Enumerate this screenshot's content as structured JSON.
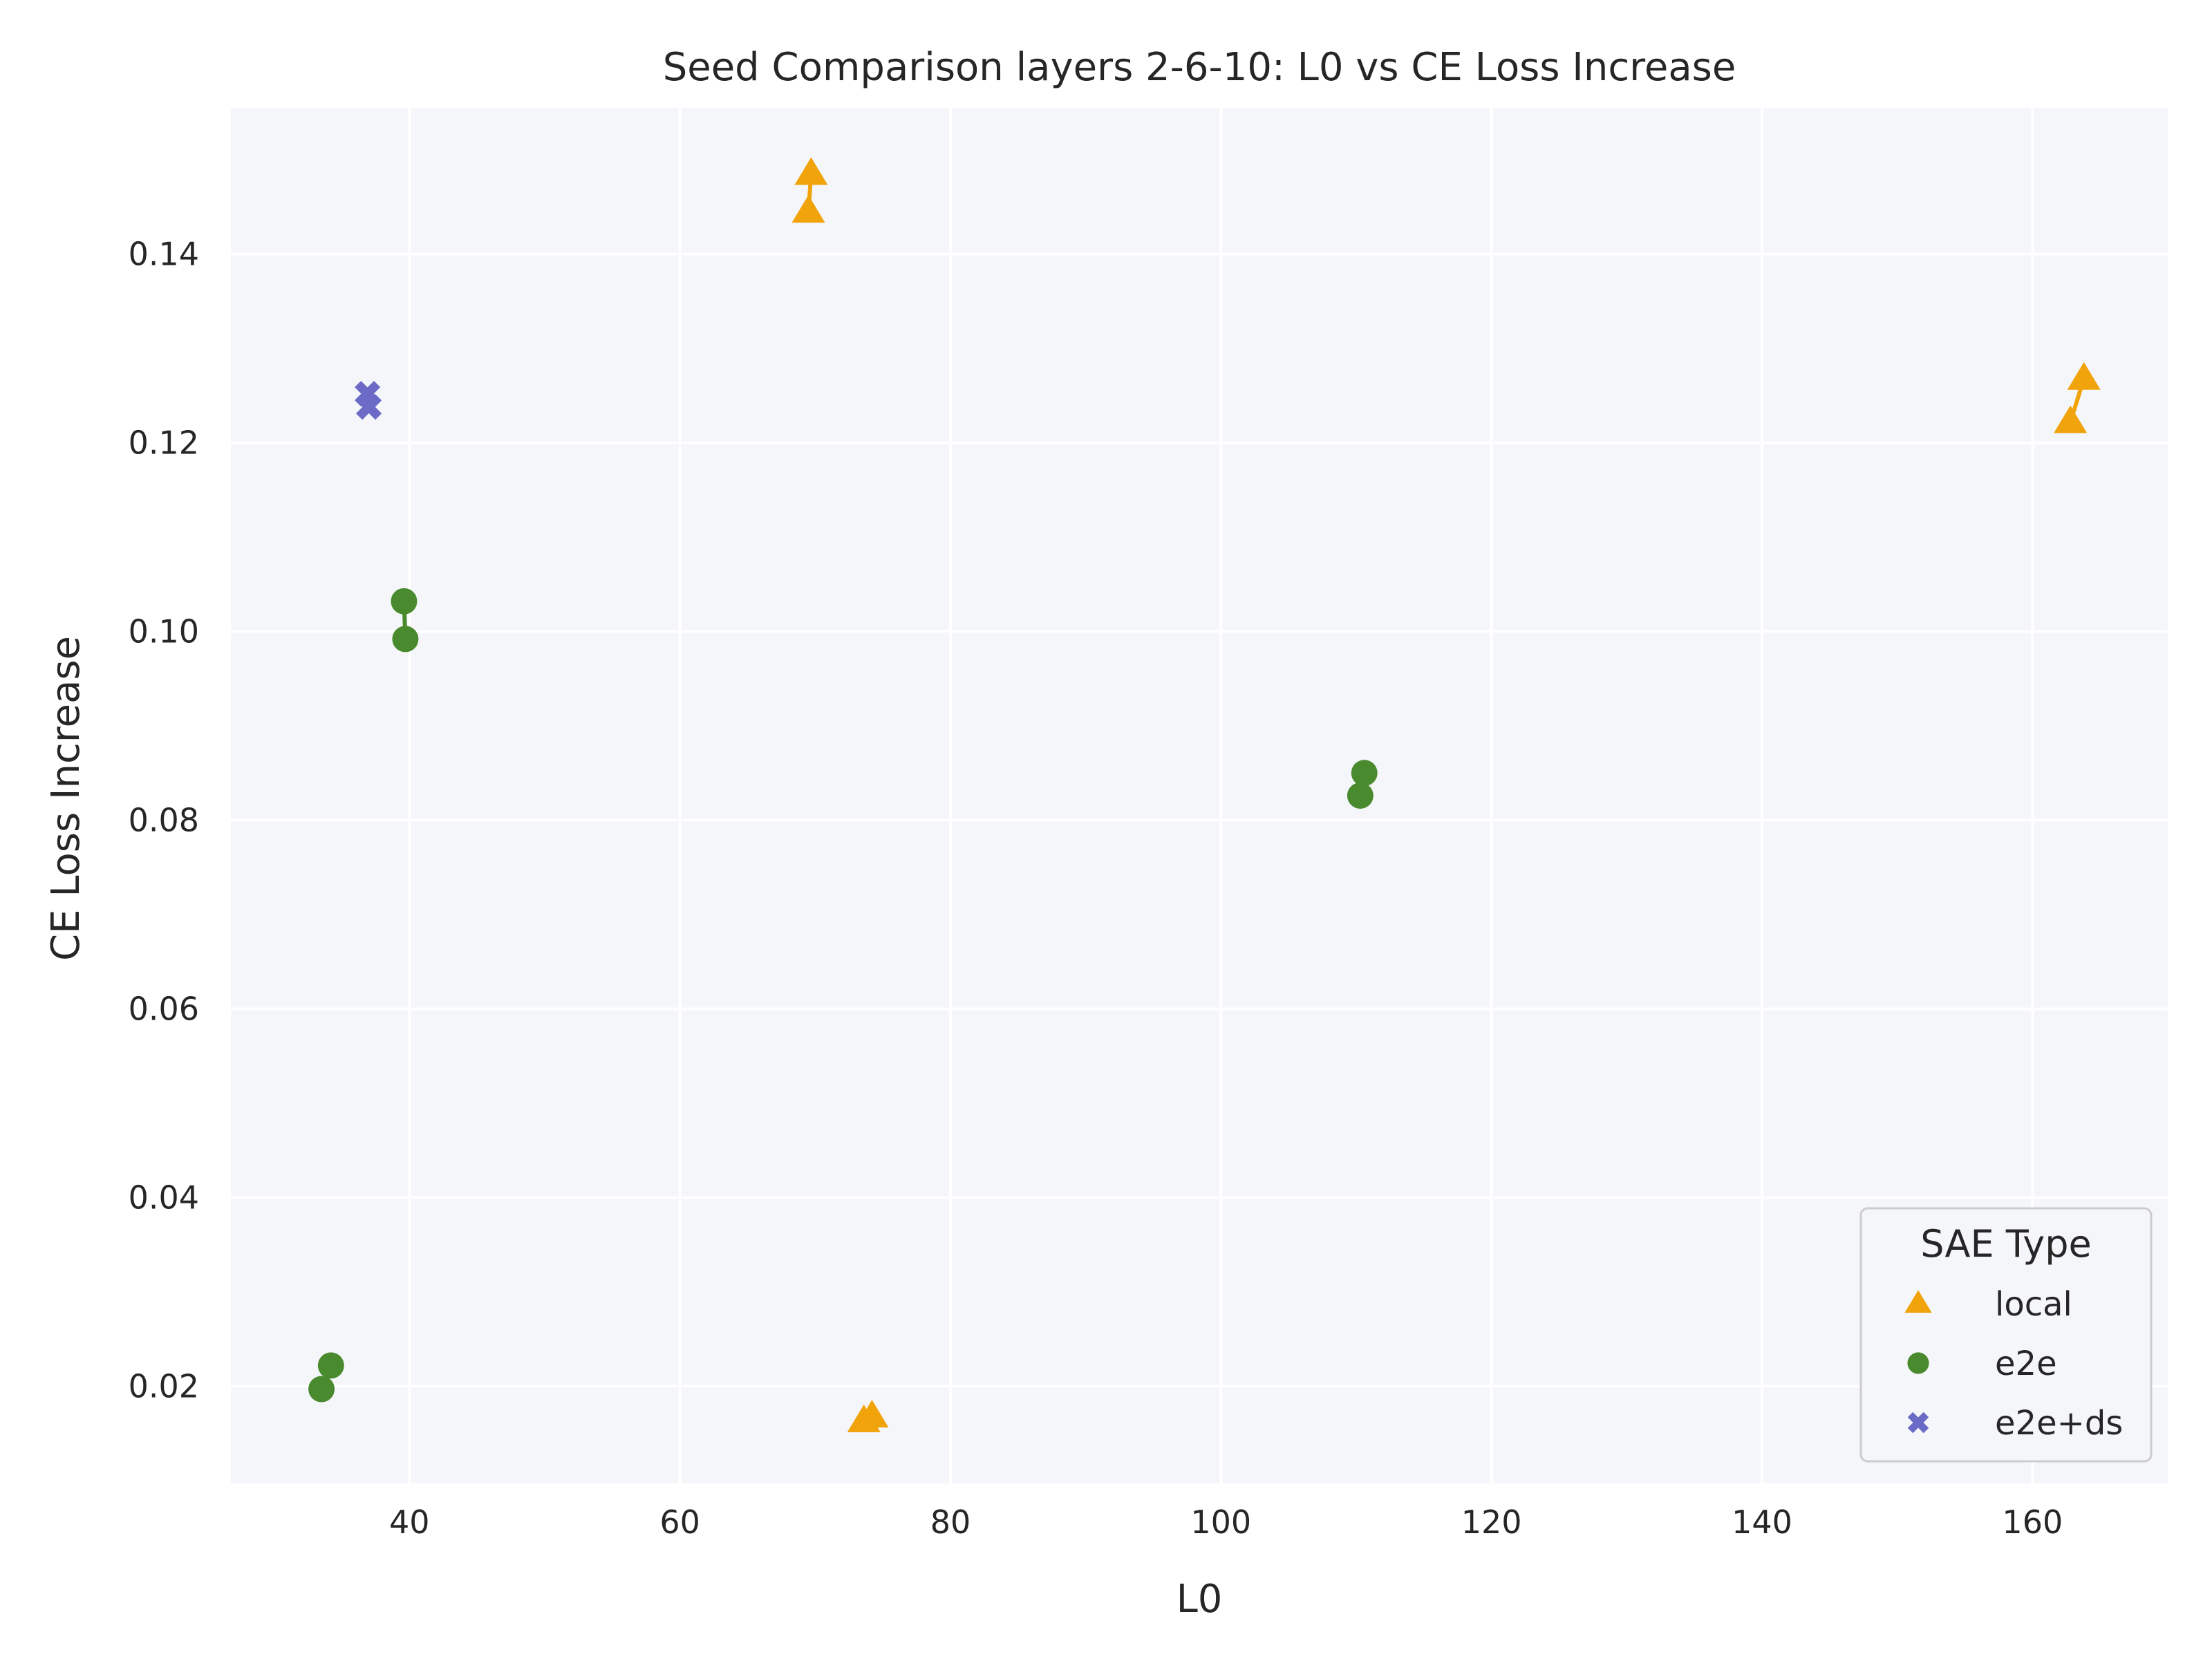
{
  "chart_data": {
    "type": "scatter",
    "title": "Seed Comparison layers 2-6-10: L0 vs CE Loss Increase",
    "xlabel": "L0",
    "ylabel": "CE Loss Increase",
    "xlim": [
      26.8,
      170.0
    ],
    "ylim": [
      0.0097,
      0.1555
    ],
    "xticks": [
      40,
      60,
      80,
      100,
      120,
      140,
      160
    ],
    "yticks": [
      0.02,
      0.04,
      0.06,
      0.08,
      0.1,
      0.12,
      0.14
    ],
    "ytick_labels": [
      "0.02",
      "0.04",
      "0.06",
      "0.08",
      "0.10",
      "0.12",
      "0.14"
    ],
    "grid": true,
    "legend": {
      "title": "SAE Type",
      "position": "lower-right"
    },
    "series": [
      {
        "name": "local",
        "color": "#f0a30a",
        "marker": "triangle",
        "pairs": [
          [
            [
              69.5,
              0.1445
            ],
            [
              69.7,
              0.1485
            ]
          ],
          [
            [
              73.6,
              0.0163
            ],
            [
              74.2,
              0.0168
            ]
          ],
          [
            [
              162.8,
              0.1222
            ],
            [
              163.8,
              0.1268
            ]
          ]
        ]
      },
      {
        "name": "e2e",
        "color": "#4a8a2e",
        "marker": "circle",
        "pairs": [
          [
            [
              39.6,
              0.1032
            ],
            [
              39.7,
              0.0992
            ]
          ],
          [
            [
              33.5,
              0.0197
            ],
            [
              34.2,
              0.0222
            ]
          ],
          [
            [
              110.3,
              0.0826
            ],
            [
              110.6,
              0.085
            ]
          ]
        ]
      },
      {
        "name": "e2e+ds",
        "color": "#6b6bc7",
        "marker": "x",
        "pairs": [
          [
            [
              36.9,
              0.1252
            ],
            [
              37.0,
              0.1238
            ]
          ]
        ]
      }
    ]
  }
}
